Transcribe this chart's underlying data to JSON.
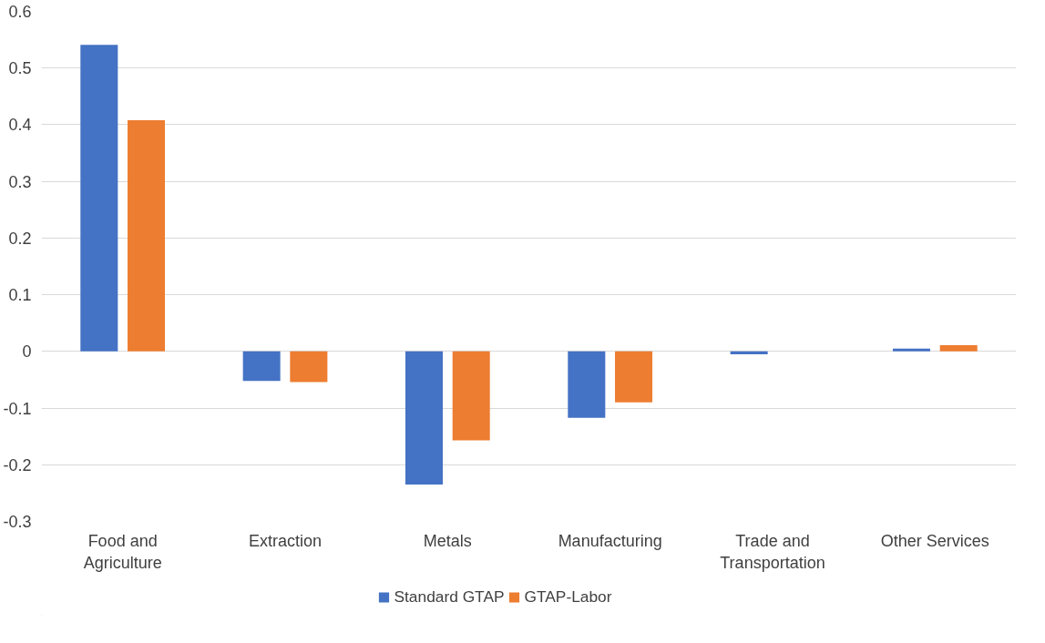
{
  "chart_data": {
    "type": "bar",
    "categories": [
      "Food and Agriculture",
      "Extraction",
      "Metals",
      "Manufacturing",
      "Trade and Transportation",
      "Other Services"
    ],
    "series": [
      {
        "name": "Standard GTAP",
        "color": "#4472c4",
        "values": [
          0.541,
          -0.052,
          -0.235,
          -0.117,
          -0.005,
          0.005
        ]
      },
      {
        "name": "GTAP-Labor",
        "color": "#ed7d31",
        "values": [
          0.408,
          -0.054,
          -0.157,
          -0.09,
          null,
          0.011
        ]
      }
    ],
    "ylim": [
      -0.3,
      0.6
    ],
    "yticks": [
      -0.3,
      -0.2,
      -0.1,
      0,
      0.1,
      0.2,
      0.3,
      0.4,
      0.5,
      0.6
    ],
    "grid": "y",
    "legend": "bottom"
  }
}
